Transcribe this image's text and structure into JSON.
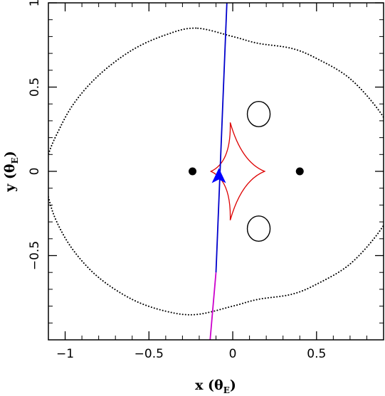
{
  "chart_data": {
    "type": "line",
    "title": "",
    "xlabel": {
      "main": "x (θ",
      "sub": "E",
      "close": ")"
    },
    "ylabel": {
      "main": "y (θ",
      "sub": "E",
      "close": ")"
    },
    "xlim": [
      -1.1,
      0.9
    ],
    "ylim": [
      -1.0,
      1.0
    ],
    "grid": false,
    "x_ticks": [
      {
        "value": -1,
        "label": "−1"
      },
      {
        "value": -0.5,
        "label": "−0.5"
      },
      {
        "value": 0,
        "label": "0"
      },
      {
        "value": 0.5,
        "label": "0.5"
      }
    ],
    "y_ticks": [
      {
        "value": -0.5,
        "label": "−0.5"
      },
      {
        "value": 0,
        "label": "0"
      },
      {
        "value": 0.5,
        "label": "0.5"
      },
      {
        "value": 1,
        "label": "1"
      }
    ],
    "lenses": [
      {
        "x": -0.24,
        "y": 0.0
      },
      {
        "x": 0.4,
        "y": 0.0
      }
    ],
    "critical_curve_outer": {
      "style": "dotted",
      "color": "#000000",
      "points": [
        [
          -0.22,
          0.85
        ],
        [
          -0.4,
          0.81
        ],
        [
          -0.6,
          0.72
        ],
        [
          -0.8,
          0.57
        ],
        [
          -0.95,
          0.4
        ],
        [
          -1.05,
          0.22
        ],
        [
          -1.1,
          0.1
        ],
        [
          -1.12,
          0.0
        ],
        [
          -1.1,
          -0.15
        ],
        [
          -1.05,
          -0.3
        ],
        [
          -0.95,
          -0.47
        ],
        [
          -0.8,
          -0.63
        ],
        [
          -0.6,
          -0.76
        ],
        [
          -0.4,
          -0.83
        ],
        [
          -0.22,
          -0.85
        ],
        [
          0.0,
          -0.8
        ],
        [
          0.15,
          -0.76
        ],
        [
          0.35,
          -0.73
        ],
        [
          0.5,
          -0.67
        ],
        [
          0.7,
          -0.55
        ],
        [
          0.88,
          -0.35
        ],
        [
          0.95,
          -0.2
        ],
        [
          0.97,
          0.0
        ],
        [
          0.95,
          0.2
        ],
        [
          0.88,
          0.35
        ],
        [
          0.7,
          0.55
        ],
        [
          0.5,
          0.67
        ],
        [
          0.35,
          0.73
        ],
        [
          0.15,
          0.76
        ],
        [
          0.0,
          0.8
        ],
        [
          -0.22,
          0.85
        ]
      ]
    },
    "critical_ovals": [
      {
        "cx": 0.155,
        "cy": 0.34,
        "rx": 0.068,
        "ry": 0.075,
        "color": "#000000"
      },
      {
        "cx": 0.155,
        "cy": -0.34,
        "rx": 0.068,
        "ry": 0.075,
        "color": "#000000"
      }
    ],
    "caustic": {
      "color": "#dd0000",
      "cusps": [
        [
          -0.015,
          0.29
        ],
        [
          0.19,
          0.0
        ],
        [
          -0.015,
          -0.29
        ],
        [
          -0.13,
          0.0
        ]
      ]
    },
    "source_trajectory": {
      "segments": [
        {
          "color": "#cc00cc",
          "points": [
            [
              -0.135,
              -1.0
            ],
            [
              -0.1,
              -0.6
            ]
          ]
        },
        {
          "color": "#0000cc",
          "points": [
            [
              -0.1,
              -0.6
            ],
            [
              -0.035,
              1.0
            ]
          ]
        }
      ]
    },
    "source_marker": {
      "x": -0.087,
      "y": -0.04,
      "color": "#0000ff"
    }
  }
}
